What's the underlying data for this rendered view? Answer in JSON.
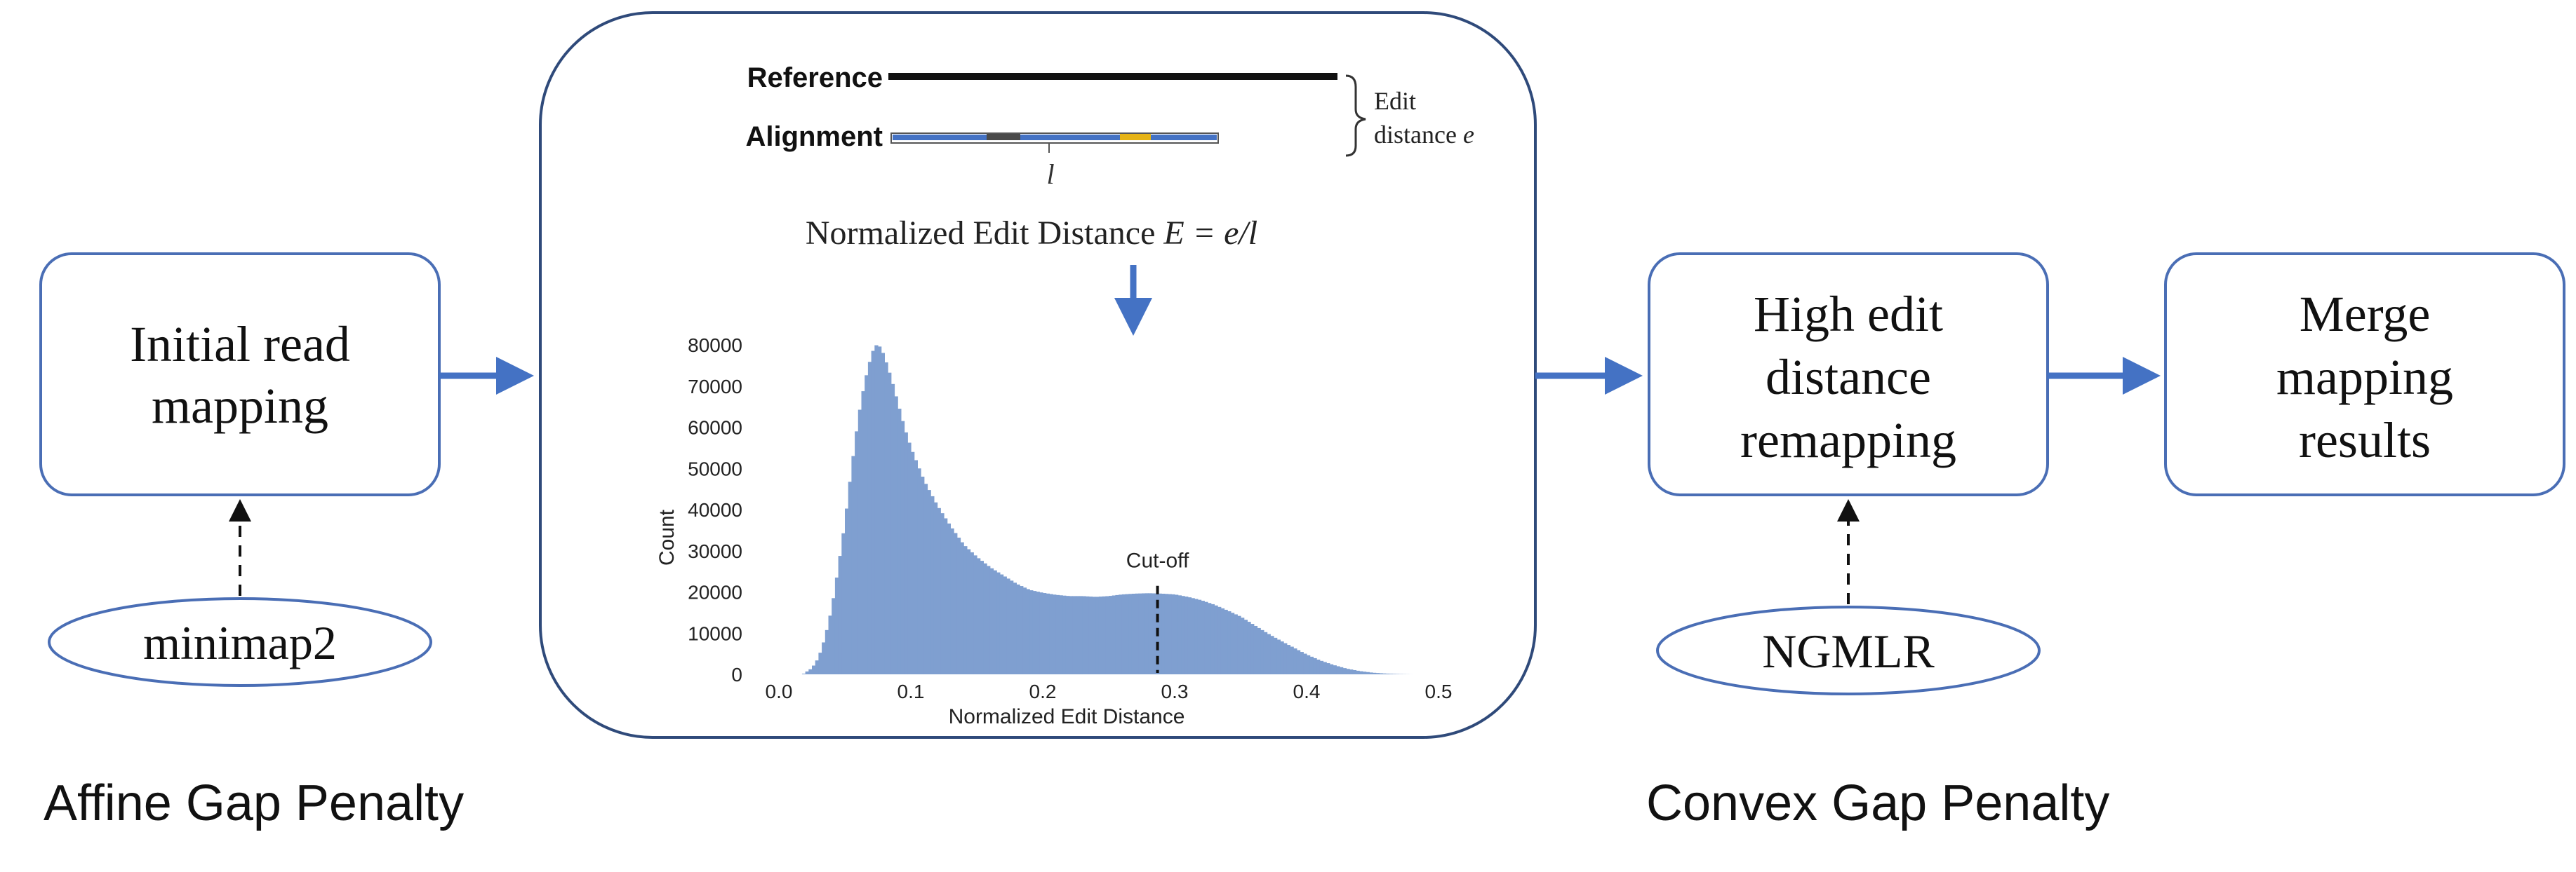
{
  "boxes": {
    "initial_mapping": {
      "line1": "Initial read",
      "line2": "mapping"
    },
    "high_edit": {
      "line1": "High edit",
      "line2": "distance",
      "line3": "remapping"
    },
    "merge": {
      "line1": "Merge",
      "line2": "mapping",
      "line3": "results"
    }
  },
  "tools": {
    "minimap2": "minimap2",
    "ngmlr": "NGMLR"
  },
  "footer": {
    "affine": "Affine Gap Penalty",
    "convex": "Convex Gap Penalty"
  },
  "center": {
    "reference_label": "Reference",
    "alignment_label": "Alignment",
    "length_symbol": "l",
    "edit_distance_line1": "Edit",
    "edit_distance_line2": "distance",
    "edit_symbol": "e",
    "formula_text": "Normalized Edit Distance",
    "formula_var": "E",
    "formula_rhs": "= e/l"
  },
  "colors": {
    "box_stroke": "#4a6eb5",
    "arrow": "#4472c4",
    "hist_fill": "#7f9fd0",
    "alignment_bar": "#4472c4",
    "mismatch_dark": "#4a4a4a",
    "mismatch_yellow": "#e6b316"
  },
  "chart_data": {
    "type": "histogram",
    "xlabel": "Normalized Edit Distance",
    "ylabel": "Count",
    "xlim": [
      0.0,
      0.5
    ],
    "ylim": [
      0,
      80000
    ],
    "xticks": [
      "0.0",
      "0.1",
      "0.2",
      "0.3",
      "0.4",
      "0.5"
    ],
    "yticks": [
      "0",
      "10000",
      "20000",
      "30000",
      "40000",
      "50000",
      "60000",
      "70000",
      "80000"
    ],
    "cutoff": {
      "x": 0.287,
      "label": "Cut-off"
    },
    "profile": [
      [
        0.018,
        0
      ],
      [
        0.025,
        1500
      ],
      [
        0.03,
        4000
      ],
      [
        0.035,
        9000
      ],
      [
        0.04,
        16000
      ],
      [
        0.045,
        26000
      ],
      [
        0.05,
        37000
      ],
      [
        0.055,
        50000
      ],
      [
        0.06,
        62000
      ],
      [
        0.065,
        71000
      ],
      [
        0.07,
        77500
      ],
      [
        0.073,
        80000
      ],
      [
        0.077,
        79500
      ],
      [
        0.08,
        77000
      ],
      [
        0.085,
        72000
      ],
      [
        0.09,
        66000
      ],
      [
        0.095,
        60000
      ],
      [
        0.1,
        55000
      ],
      [
        0.11,
        47000
      ],
      [
        0.12,
        41000
      ],
      [
        0.13,
        36000
      ],
      [
        0.14,
        31500
      ],
      [
        0.15,
        28500
      ],
      [
        0.16,
        26000
      ],
      [
        0.17,
        24000
      ],
      [
        0.18,
        22000
      ],
      [
        0.19,
        20500
      ],
      [
        0.2,
        19800
      ],
      [
        0.21,
        19300
      ],
      [
        0.22,
        19000
      ],
      [
        0.23,
        19000
      ],
      [
        0.24,
        18800
      ],
      [
        0.25,
        19000
      ],
      [
        0.26,
        19400
      ],
      [
        0.27,
        19600
      ],
      [
        0.28,
        19700
      ],
      [
        0.29,
        19600
      ],
      [
        0.3,
        19400
      ],
      [
        0.31,
        18800
      ],
      [
        0.32,
        18000
      ],
      [
        0.33,
        16900
      ],
      [
        0.34,
        15500
      ],
      [
        0.35,
        14000
      ],
      [
        0.36,
        12000
      ],
      [
        0.37,
        10000
      ],
      [
        0.38,
        8200
      ],
      [
        0.39,
        6500
      ],
      [
        0.4,
        4800
      ],
      [
        0.41,
        3400
      ],
      [
        0.42,
        2300
      ],
      [
        0.43,
        1400
      ],
      [
        0.44,
        800
      ],
      [
        0.45,
        400
      ],
      [
        0.46,
        180
      ],
      [
        0.47,
        60
      ],
      [
        0.48,
        0
      ]
    ]
  }
}
